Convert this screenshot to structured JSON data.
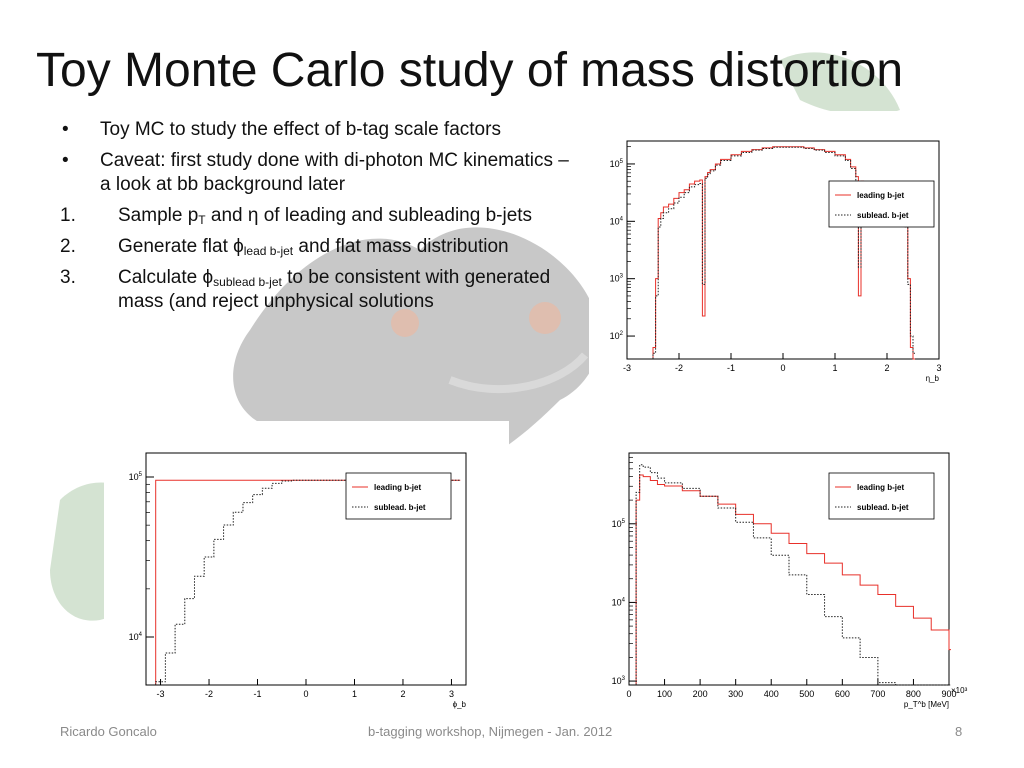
{
  "slide": {
    "title": "Toy Monte Carlo study of mass distortion",
    "bullets": [
      {
        "marker": "•",
        "text": "Toy MC to study the effect of  b-tag scale factors"
      },
      {
        "marker": "•",
        "text": "Caveat: first study done with di-photon MC kinematics – a look at bb background later"
      }
    ],
    "steps": [
      {
        "marker": "1.",
        "pre": "Sample p",
        "sub": "T",
        "post": " and η of leading and subleading b-jets"
      },
      {
        "marker": "2.",
        "pre": "Generate flat ϕ",
        "sub": "lead b-jet",
        "post": " and flat mass distribution"
      },
      {
        "marker": "3.",
        "pre": "Calculate ϕ",
        "sub": "sublead b-jet",
        "post": " to be consistent with generated mass (and reject unphysical solutions"
      }
    ],
    "footer": {
      "author": "Ricardo Goncalo",
      "event": "b-tagging workshop, Nijmegen - Jan. 2012",
      "page": "8"
    }
  },
  "colors": {
    "leading": "#e8302a",
    "sublead": "#222222"
  },
  "chart_data": [
    {
      "id": "eta",
      "type": "line",
      "xlabel": "η_b",
      "xlim": [
        -3,
        3
      ],
      "ylim_log10": [
        1.6,
        5.4
      ],
      "log_y": true,
      "xticks": [
        -3,
        -2,
        -1,
        0,
        1,
        2,
        3
      ],
      "ytick_exponents": [
        2,
        3,
        4,
        5
      ],
      "legend_position": "right",
      "x": [
        -2.5,
        -2.45,
        -2.4,
        -2.35,
        -2.3,
        -2.2,
        -2.1,
        -2.0,
        -1.9,
        -1.8,
        -1.7,
        -1.6,
        -1.55,
        -1.5,
        -1.45,
        -1.4,
        -1.3,
        -1.2,
        -1.0,
        -0.8,
        -0.6,
        -0.4,
        -0.2,
        0.0,
        0.2,
        0.4,
        0.6,
        0.8,
        1.0,
        1.2,
        1.3,
        1.4,
        1.45,
        1.5,
        1.55,
        1.6,
        1.7,
        1.8,
        1.9,
        2.0,
        2.1,
        2.2,
        2.3,
        2.35,
        2.4,
        2.45,
        2.5
      ],
      "series": [
        {
          "name": "leading b-jet",
          "style": "solid",
          "log10_values": [
            1.8,
            3.0,
            4.05,
            4.15,
            4.25,
            4.3,
            4.4,
            4.5,
            4.55,
            4.65,
            4.7,
            4.72,
            2.35,
            4.78,
            4.85,
            4.9,
            5.0,
            5.08,
            5.16,
            5.22,
            5.25,
            5.28,
            5.3,
            5.3,
            5.3,
            5.28,
            5.25,
            5.22,
            5.16,
            5.08,
            4.95,
            4.78,
            2.7,
            4.7,
            4.65,
            4.6,
            4.55,
            4.45,
            4.4,
            4.3,
            4.25,
            4.2,
            4.1,
            4.0,
            3.0,
            1.8,
            1.6
          ]
        },
        {
          "name": "sublead. b-jet",
          "style": "dotted",
          "log10_values": [
            1.7,
            2.7,
            3.9,
            4.05,
            4.15,
            4.22,
            4.32,
            4.42,
            4.5,
            4.6,
            4.64,
            4.66,
            2.9,
            4.75,
            4.82,
            4.88,
            4.98,
            5.06,
            5.14,
            5.2,
            5.24,
            5.27,
            5.29,
            5.29,
            5.29,
            5.27,
            5.24,
            5.2,
            5.14,
            5.06,
            4.92,
            4.7,
            3.2,
            4.6,
            4.58,
            4.55,
            4.48,
            4.4,
            4.32,
            4.25,
            4.2,
            4.12,
            4.02,
            3.9,
            2.9,
            2.0,
            1.7
          ]
        }
      ]
    },
    {
      "id": "phi",
      "type": "line",
      "xlabel": "ϕ_b",
      "xlim": [
        -3.3,
        3.3
      ],
      "ylim_log10": [
        3.7,
        5.15
      ],
      "log_y": true,
      "xticks": [
        -3,
        -2,
        -1,
        0,
        1,
        2,
        3
      ],
      "ytick_exponents": [
        4,
        5
      ],
      "legend_position": "top-right",
      "x": [
        -3.1,
        -2.9,
        -2.7,
        -2.5,
        -2.3,
        -2.1,
        -1.9,
        -1.7,
        -1.5,
        -1.3,
        -1.1,
        -0.9,
        -0.7,
        -0.5,
        -0.3,
        0.0,
        0.5,
        1.0,
        1.5,
        2.0,
        2.5,
        3.0,
        3.14
      ],
      "series": [
        {
          "name": "leading b-jet",
          "style": "solid",
          "values_are": "flat",
          "log10_values": [
            4.98,
            4.98,
            4.98,
            4.98,
            4.98,
            4.98,
            4.98,
            4.98,
            4.98,
            4.98,
            4.98,
            4.98,
            4.98,
            4.98,
            4.98,
            4.98,
            4.98,
            4.98,
            4.98,
            4.98,
            4.98,
            4.98,
            4.98
          ]
        },
        {
          "name": "sublead. b-jet",
          "style": "dotted",
          "log10_values": [
            3.72,
            3.9,
            4.08,
            4.24,
            4.38,
            4.5,
            4.61,
            4.7,
            4.78,
            4.84,
            4.89,
            4.93,
            4.96,
            4.975,
            4.98,
            4.98,
            4.98,
            4.98,
            4.98,
            4.98,
            4.98,
            4.98,
            4.98
          ]
        }
      ]
    },
    {
      "id": "pt",
      "type": "line",
      "xlabel": "p_T^b [MeV]",
      "x_multiplier": "×10³",
      "xlim": [
        0,
        900
      ],
      "ylim_log10": [
        2.95,
        5.9
      ],
      "log_y": true,
      "xticks": [
        0,
        100,
        200,
        300,
        400,
        500,
        600,
        700,
        800,
        900
      ],
      "ytick_exponents": [
        3,
        4,
        5
      ],
      "legend_position": "top-right",
      "x": [
        20,
        30,
        40,
        60,
        80,
        100,
        150,
        200,
        250,
        300,
        350,
        400,
        450,
        500,
        550,
        600,
        650,
        700,
        750,
        800,
        850,
        900
      ],
      "series": [
        {
          "name": "leading b-jet",
          "style": "solid",
          "log10_values": [
            5.3,
            5.62,
            5.6,
            5.55,
            5.5,
            5.48,
            5.42,
            5.35,
            5.25,
            5.12,
            5.0,
            4.88,
            4.75,
            4.62,
            4.5,
            4.35,
            4.22,
            4.1,
            3.95,
            3.8,
            3.65,
            3.4
          ]
        },
        {
          "name": "sublead. b-jet",
          "style": "dotted",
          "log10_values": [
            5.4,
            5.75,
            5.72,
            5.65,
            5.58,
            5.52,
            5.45,
            5.35,
            5.2,
            5.02,
            4.82,
            4.6,
            4.35,
            4.1,
            3.82,
            3.55,
            3.3,
            2.98,
            2.95,
            2.95,
            2.95,
            2.95
          ]
        }
      ]
    }
  ]
}
